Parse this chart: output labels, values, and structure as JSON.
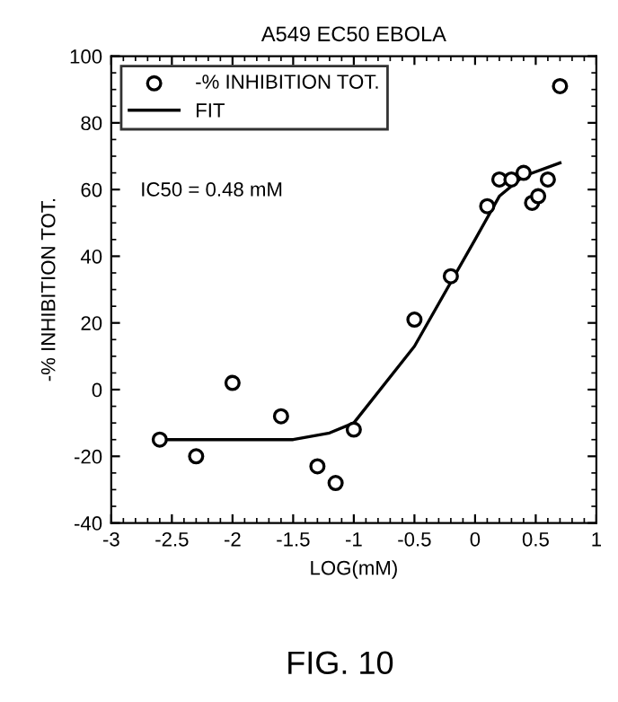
{
  "chart_data": {
    "type": "scatter",
    "title": "A549 EC50 EBOLA",
    "xlabel": "LOG(mM)",
    "ylabel": "-% INHIBITION TOT.",
    "annotations": [
      "IC50 = 0.48 mM",
      "FIG. 10"
    ],
    "series": [
      {
        "name": "-% INHIBITION TOT.",
        "color": "#000000",
        "marker": "circle",
        "x": [
          -2.6,
          -2.3,
          -2.0,
          -1.6,
          -1.3,
          -1.15,
          -1.0,
          -0.5,
          -0.2,
          0.1,
          0.2,
          0.3,
          0.4,
          0.47,
          0.52,
          0.6,
          0.7
        ],
        "values": [
          -15,
          -20,
          2,
          -8,
          -23,
          -28,
          -12,
          21,
          34,
          55,
          63,
          63,
          65,
          56,
          58,
          63,
          91
        ]
      },
      {
        "name": "FIT",
        "type": "line",
        "color": "#000000",
        "marker": "none",
        "line_style": "solid",
        "x": [
          -2.6,
          -1.5,
          -1.2,
          -1.0,
          -0.5,
          0.0,
          0.2,
          0.4,
          0.7
        ],
        "values": [
          -15,
          -15,
          -13,
          -10,
          13,
          45,
          58,
          64,
          68
        ]
      }
    ],
    "xlim": [
      -3,
      1
    ],
    "xticks": [
      -3,
      -2.5,
      -2,
      -1.5,
      -1,
      -0.5,
      0,
      0.5,
      1
    ],
    "ylim": [
      -40,
      100
    ],
    "yticks": [
      -40,
      -20,
      0,
      20,
      40,
      60,
      80,
      100
    ],
    "grid": false,
    "legend": "top left"
  }
}
